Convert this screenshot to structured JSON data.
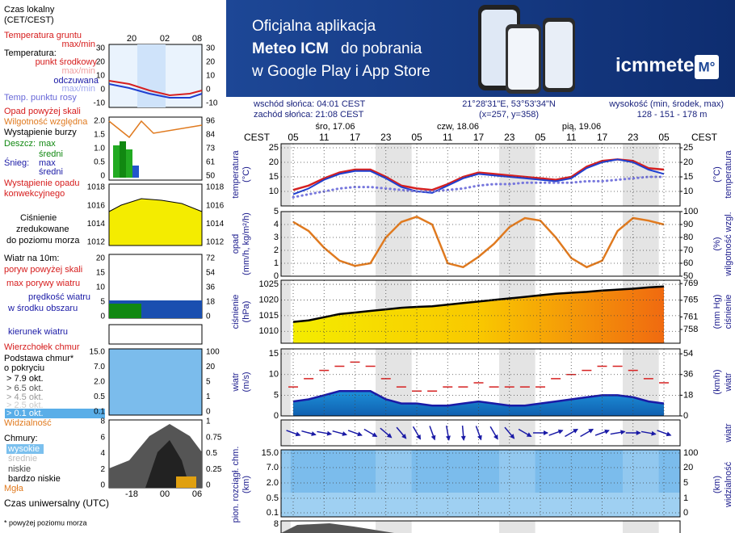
{
  "banner": {
    "line1": "Oficjalna aplikacja",
    "line2_bold": "Meteo ICM",
    "line2_rest": "do pobrania",
    "line3": "w Google Play i App Store",
    "logo": "icmmeteo",
    "badge": "M°"
  },
  "header": {
    "sunrise": "wschód słońca: 04:01 CEST",
    "sunset": "zachód słońca: 21:08 CEST",
    "coords": "21°28'31\"E, 53°53'34\"N",
    "grid": "(x=257, y=358)",
    "elevation_label": "wysokość (min, środek, max)",
    "elevation": "128 - 151 - 178 m"
  },
  "time": {
    "zone": "CEST",
    "day_labels": [
      "śro, 17.06",
      "czw, 18.06",
      "pią, 19.06"
    ],
    "hour_labels": [
      "05",
      "11",
      "17",
      "23",
      "05",
      "11",
      "17",
      "23",
      "05",
      "11",
      "17",
      "23",
      "05"
    ],
    "x_hours": [
      0,
      3,
      6,
      9,
      12,
      15,
      18,
      21,
      24,
      27,
      30,
      33,
      36,
      39,
      42,
      45,
      48,
      51,
      54,
      57,
      60,
      63,
      66,
      69,
      72
    ]
  },
  "panels": {
    "temperature": {
      "label": "temperatura",
      "unit": "(°C)",
      "ylim": [
        5,
        26.4
      ],
      "yticks": [
        10,
        15,
        20,
        25
      ],
      "y2lim": [
        5,
        26.4
      ],
      "y2ticks": [
        10,
        15,
        20,
        25
      ],
      "series": [
        {
          "color": "#d62020",
          "values": [
            10.5,
            12,
            14.5,
            16.5,
            17.5,
            17.5,
            15,
            12,
            11,
            10.5,
            12.5,
            15,
            16.5,
            16,
            15.5,
            15,
            14.5,
            14,
            15,
            18.5,
            20.5,
            21,
            20.5,
            18,
            17.5
          ]
        },
        {
          "color": "#1f3fd0",
          "values": [
            9,
            11,
            14,
            16,
            17,
            17,
            14.5,
            11.5,
            10,
            9.5,
            12,
            14.5,
            16,
            15.5,
            15,
            14.5,
            14,
            13.5,
            14.5,
            18,
            20,
            21,
            20,
            17.5,
            16
          ]
        },
        {
          "color": "#7777dd",
          "style": "dotted",
          "values": [
            8,
            9,
            10,
            11,
            11.5,
            11.5,
            11,
            10.5,
            10,
            10,
            10.5,
            11,
            12,
            12.5,
            12.5,
            13,
            13,
            13,
            13,
            13.5,
            13.5,
            14,
            14.5,
            15,
            15
          ]
        }
      ]
    },
    "precip": {
      "label": "opad",
      "unit": "(mm/h, kg/m²/h)",
      "label2": "wilgotność wzgl.",
      "unit2": "(%)",
      "ylim": [
        0,
        5
      ],
      "yticks": [
        0,
        1,
        2,
        3,
        4,
        5
      ],
      "y2lim": [
        50,
        100
      ],
      "y2ticks": [
        50,
        60,
        70,
        80,
        90,
        100
      ],
      "series": [
        {
          "color": "#e07a1f",
          "axis": "y2",
          "values": [
            92,
            85,
            72,
            62,
            58,
            60,
            80,
            92,
            96,
            90,
            60,
            57,
            65,
            75,
            88,
            95,
            93,
            80,
            64,
            57,
            62,
            85,
            95,
            93,
            90
          ]
        }
      ]
    },
    "pressure": {
      "label": "ciśnienie",
      "unit": "(hPa)",
      "unit2": "(mm Hg)",
      "ylim": [
        1006.2,
        1026.3
      ],
      "yticks": [
        1010,
        1015,
        1020,
        1025
      ],
      "y2lim": [
        754.7,
        769.8
      ],
      "y2ticks": [
        758,
        761,
        765,
        769
      ],
      "series": [
        {
          "color": "#000000",
          "fill": true,
          "values": [
            1013,
            1013.5,
            1014.5,
            1015.5,
            1016,
            1016.5,
            1017,
            1017.5,
            1017.8,
            1018,
            1018.5,
            1019,
            1019.5,
            1020,
            1020.5,
            1021,
            1021.5,
            1022,
            1022.3,
            1022.6,
            1023,
            1023.3,
            1023.6,
            1024,
            1024.3
          ]
        }
      ]
    },
    "wind": {
      "label": "wiatr",
      "unit": "(m/s)",
      "unit2": "(km/h)",
      "ylim": [
        0,
        16.2
      ],
      "yticks": [
        0,
        5,
        10,
        15
      ],
      "y2lim": [
        0,
        58.3
      ],
      "y2ticks": [
        0,
        18,
        36,
        54
      ],
      "series": [
        {
          "color": "#1a1aa6",
          "fill": true,
          "values": [
            3.5,
            4,
            5,
            6,
            6,
            6,
            4,
            3,
            3,
            2.5,
            2.5,
            3,
            3.5,
            3,
            2.5,
            2.5,
            3,
            3.5,
            4,
            4.5,
            5,
            5,
            4.5,
            3.5,
            3
          ]
        },
        {
          "color": "#d62020",
          "style": "dash",
          "values": [
            7,
            9,
            11,
            12,
            13,
            12,
            9,
            7,
            6,
            6,
            7,
            7,
            8,
            7,
            7,
            7,
            7,
            9,
            10,
            11,
            12,
            12,
            11,
            9,
            8
          ]
        }
      ]
    },
    "wind_dir": {
      "label": "wiatr",
      "values": [
        290,
        285,
        280,
        285,
        290,
        300,
        310,
        320,
        330,
        340,
        350,
        355,
        340,
        330,
        320,
        300,
        270,
        250,
        240,
        240,
        250,
        260,
        270,
        280,
        290
      ]
    },
    "clouds": {
      "label": "pion. rozciągł. chm.",
      "unit": "(km)",
      "label2": "widzialność",
      "unit2": "(km)",
      "left_labels": [
        {
          "value": 15,
          "label": "15.0"
        },
        {
          "value": 7,
          "label": "7.0"
        },
        {
          "value": 2,
          "label": "2.0"
        },
        0.5,
        0.1
      ],
      "right_labels": [
        100,
        20,
        5,
        1,
        0
      ]
    },
    "bottom": {
      "tick": 8
    }
  },
  "left": {
    "czas_lokalny": "Czas lokalny",
    "cet": "(CET/CEST)",
    "local_hours": [
      "20",
      "02",
      "08"
    ],
    "temp_gruntu": "Temperatura gruntu",
    "tg_maxmin": "max/min",
    "temperatura": "Temperatura:",
    "punkt": "punkt środkowy",
    "pm_maxmin": "max/min",
    "odczuwana": "odczuwana",
    "od_maxmin": "max/min",
    "rosa": "Temp. punktu rosy",
    "opad_pow": "Opad powyżej skali",
    "wilg": "Wilgotność względna",
    "burza": "Wystąpienie burzy",
    "deszcz": "Deszcz:",
    "d_max": "max",
    "d_sr": "średni",
    "snieg": "Śnieg:",
    "s_max": "max",
    "s_sr": "średni",
    "konw1": "Wystąpienie opadu",
    "konw2": "konwekcyjnego",
    "cis1": "Ciśnienie",
    "cis2": "zredukowane",
    "cis3": "do poziomu morza",
    "wiatr10": "Wiatr na 10m:",
    "poryw_pow": "poryw powyżej skali",
    "max_por": "max porywy wiatru",
    "predk": "prędkość wiatru",
    "srodek": "w środku obszaru",
    "kier": "kierunek wiatru",
    "wierzch": "Wierzchołek chmur",
    "podst1": "Podstawa chmur*",
    "podst2": "o pokryciu",
    "ok79": "> 7.9 okt.",
    "ok65": "> 6.5 okt.",
    "ok45": "> 4.5 okt.",
    "ok25": "> 2.5 okt.",
    "ok01": "> 0.1 okt.",
    "widz": "Widzialność",
    "chmury": "Chmury:",
    "wys": "wysokie",
    "sred": "średnie",
    "nisk": "niskie",
    "bn": "bardzo niskie",
    "mgla": "Mgła",
    "utc_hours": [
      "-18",
      "00",
      "06"
    ],
    "utc": "Czas uniwersalny (UTC)",
    "footnote": "* powyżej poziomu morza",
    "mini": {
      "temp": {
        "left": [
          30,
          20,
          10,
          0,
          -10
        ],
        "right": [
          30,
          20,
          10,
          0,
          -10
        ]
      },
      "rain": {
        "left": [
          {
            "value": 2,
            "label": "2.0"
          },
          1.5,
          {
            "value": 1,
            "label": "1.0"
          },
          0.5,
          0
        ],
        "right": [
          96,
          84,
          73,
          61,
          50
        ]
      },
      "press": {
        "left": [
          1018,
          1016,
          1014,
          1012
        ],
        "right": [
          1018,
          1016,
          1014,
          1012
        ]
      },
      "wind": {
        "left": [
          20,
          15,
          10,
          5,
          0
        ],
        "right": [
          72,
          54,
          36,
          18,
          0
        ]
      },
      "cloud": {
        "left": [
          {
            "value": 15,
            "label": "15.0"
          },
          {
            "value": 7,
            "label": "7.0"
          },
          {
            "value": 2,
            "label": "2.0"
          },
          0.5,
          0.1
        ],
        "right": [
          100,
          20,
          5,
          1,
          0
        ]
      },
      "chm": {
        "left": [
          8,
          6,
          4,
          2,
          0
        ],
        "right": [
          1,
          0.75,
          0.5,
          0.25,
          0
        ]
      }
    }
  }
}
